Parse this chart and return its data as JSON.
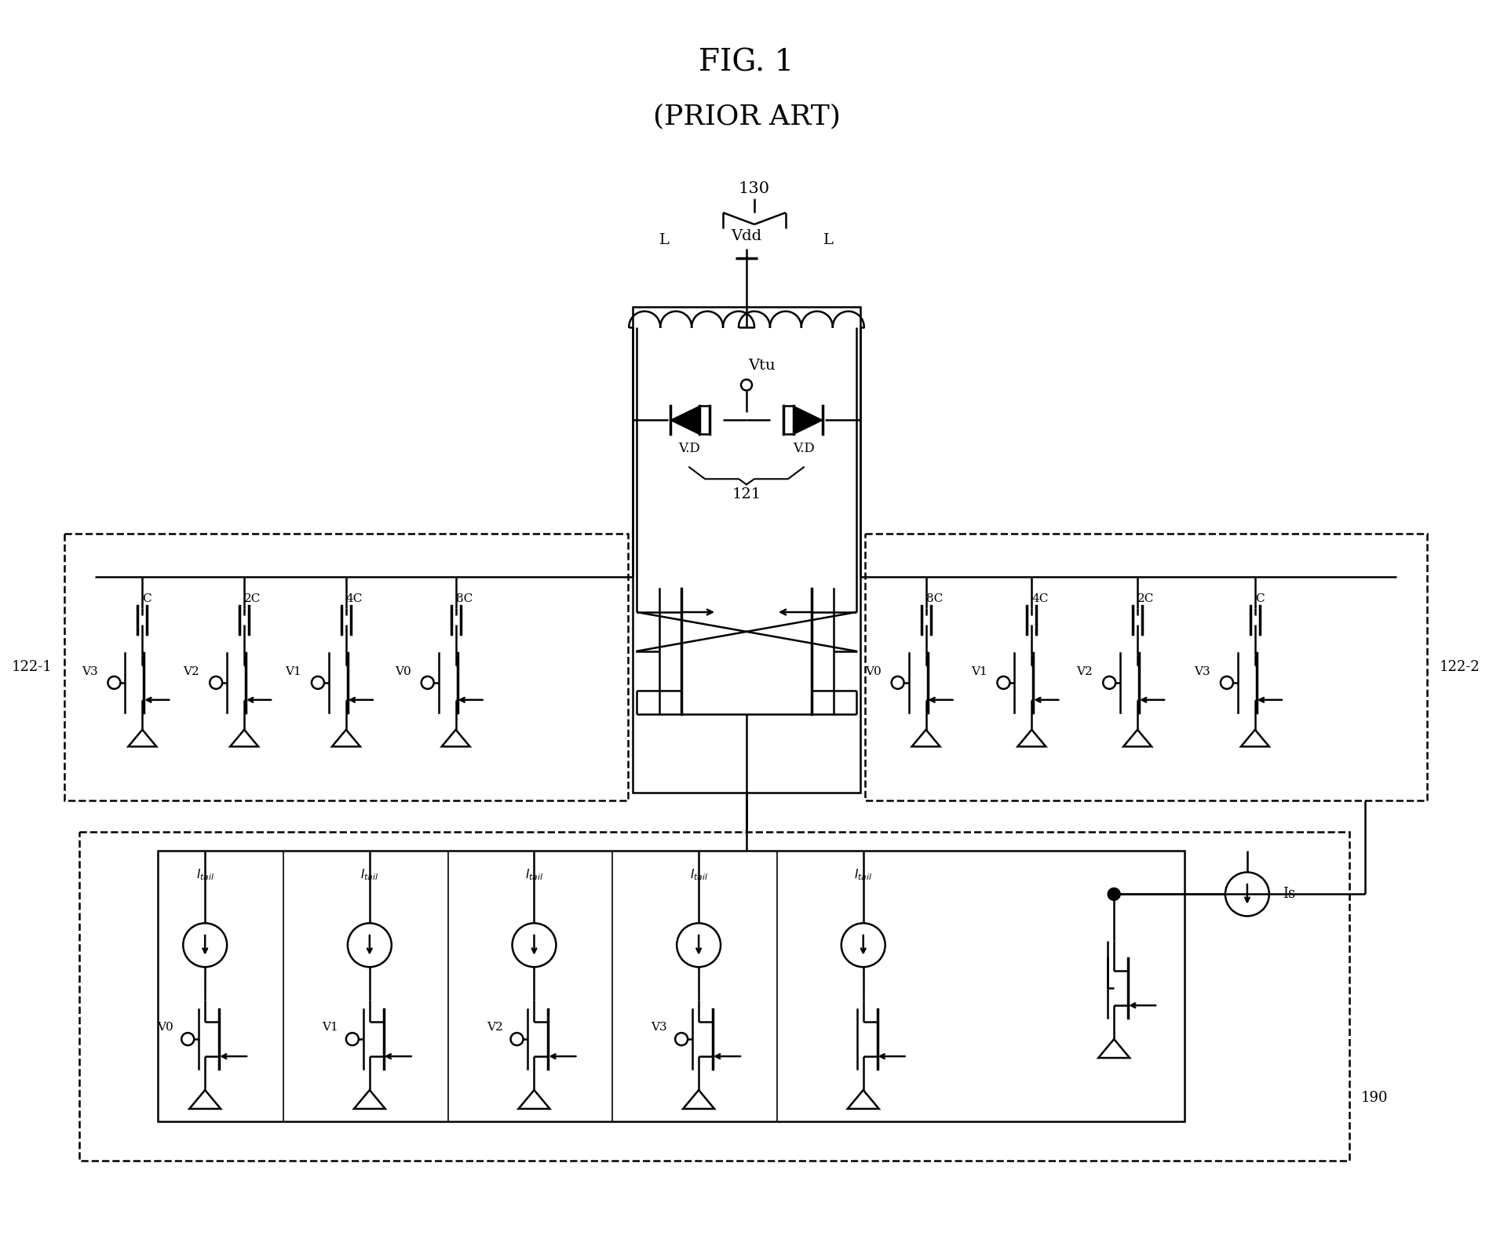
{
  "title": "FIG. 1",
  "subtitle": "(PRIOR ART)",
  "background": "#ffffff",
  "fig_width": 19.02,
  "fig_height": 15.89,
  "label_130": "130",
  "label_121": "121",
  "label_122_1": "122-1",
  "label_122_2": "122-2",
  "label_190": "190",
  "label_Vdd": "Vdd",
  "label_Vtu": "Vtu",
  "label_L_left": "L",
  "label_L_right": "L",
  "label_VD_left": "V.D",
  "label_VD_right": "V.D",
  "label_Is": "Is",
  "cap_labels_left": [
    "C",
    "2C",
    "4C",
    "8C"
  ],
  "cap_switch_left": [
    "V3",
    "V2",
    "V1",
    "V0"
  ],
  "cap_labels_right": [
    "8C",
    "4C",
    "2C",
    "C"
  ],
  "cap_switch_right": [
    "V0",
    "V1",
    "V2",
    "V3"
  ],
  "tail_switch_labels": [
    "V0",
    "V1",
    "V2",
    "V3",
    ""
  ]
}
